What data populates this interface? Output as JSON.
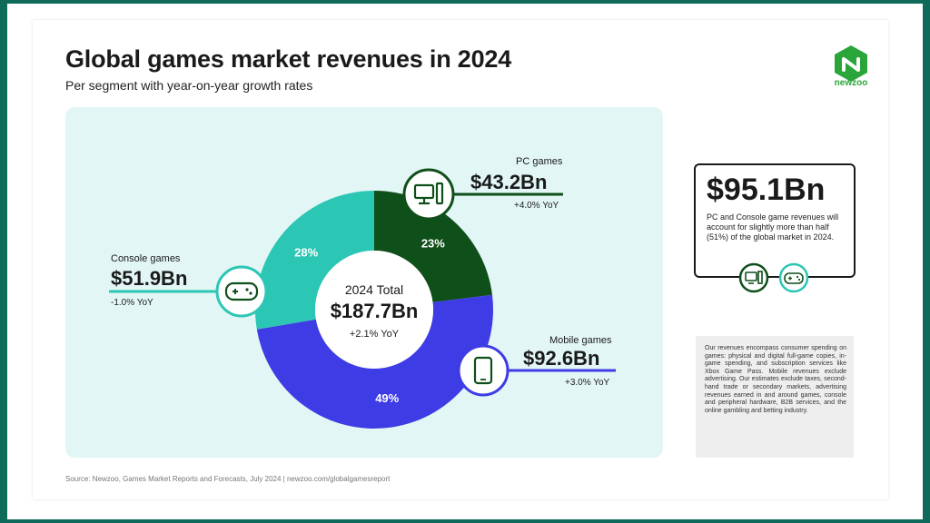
{
  "header": {
    "title": "Global games market revenues in 2024",
    "subtitle": "Per segment with year-on-year growth rates"
  },
  "logo": {
    "text": "newzoo",
    "color": "#2aa53a"
  },
  "center": {
    "label": "2024 Total",
    "value": "$187.7Bn",
    "yoy": "+2.1% YoY"
  },
  "segments": {
    "pc": {
      "name": "PC games",
      "value": "$43.2Bn",
      "yoy": "+4.0% YoY",
      "icon": "pc-icon"
    },
    "console": {
      "name": "Console games",
      "value": "$51.9Bn",
      "yoy": "-1.0% YoY",
      "icon": "gamepad-icon"
    },
    "mobile": {
      "name": "Mobile games",
      "value": "$92.6Bn",
      "yoy": "+3.0% YoY",
      "icon": "smartphone-icon"
    }
  },
  "callout": {
    "value": "$95.1Bn",
    "text": "PC and Console game revenues will account for slightly more than half (51%) of the global market in 2024."
  },
  "note": {
    "text": "Our revenues encompass consumer spending on games: physical and digital full-game copies, in-game spending, and subscription services like Xbox Game Pass. Mobile revenues exclude advertising. Our estimates exclude taxes, second-hand trade or secondary markets, advertising revenues earned in and around games, console and peripheral hardware, B2B services, and the online gambling and betting industry."
  },
  "source": "Source: Newzoo, Games Market Reports and Forecasts, July 2024  |  newzoo.com/globalgamesreport",
  "chart_data": {
    "type": "pie",
    "title": "Global games market revenues in 2024",
    "subtitle": "Per segment with year-on-year growth rates",
    "categories": [
      "PC games",
      "Mobile games",
      "Console games"
    ],
    "values": [
      43.2,
      92.6,
      51.9
    ],
    "percent_labels": [
      "23%",
      "49%",
      "28%"
    ],
    "colors": [
      "#0f4f1a",
      "#3d3ce5",
      "#2cc6b4"
    ],
    "unit": "$Bn",
    "total": 187.7
  }
}
